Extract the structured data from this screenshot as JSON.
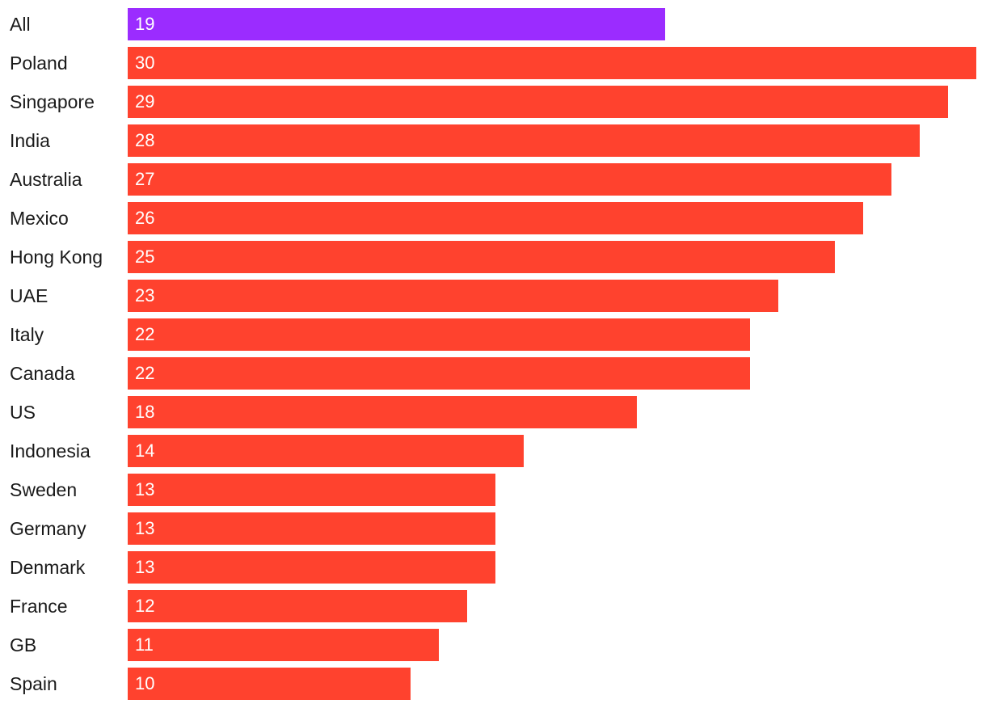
{
  "chart_data": {
    "type": "bar",
    "orientation": "horizontal",
    "title": "",
    "xlabel": "",
    "ylabel": "",
    "xlim": [
      0,
      30
    ],
    "grid": false,
    "legend": "none",
    "categories": [
      "All",
      "Poland",
      "Singapore",
      "India",
      "Australia",
      "Mexico",
      "Hong Kong",
      "UAE",
      "Italy",
      "Canada",
      "US",
      "Indonesia",
      "Sweden",
      "Germany",
      "Denmark",
      "France",
      "GB",
      "Spain"
    ],
    "values": [
      19,
      30,
      29,
      28,
      27,
      26,
      25,
      23,
      22,
      22,
      18,
      14,
      13,
      13,
      13,
      12,
      11,
      10
    ],
    "highlight_category": "All",
    "colors": {
      "highlight": "#9b2cff",
      "default": "#ff422e"
    }
  }
}
